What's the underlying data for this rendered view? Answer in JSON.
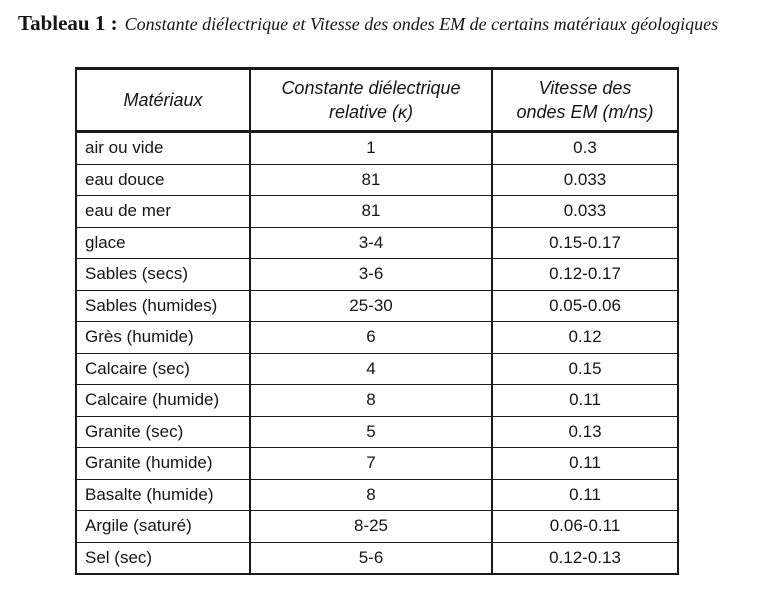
{
  "page": {
    "background_color": "#ffffff",
    "text_color": "#151515",
    "border_color": "#1a1a1a"
  },
  "title": {
    "label": "Tableau 1 :",
    "caption": "Constante diélectrique et Vitesse des ondes EM de certains matériaux géologiques"
  },
  "table": {
    "headers": [
      "Matériaux",
      "Constante diélectrique\nrelative (κ)",
      "Vitesse des\nondes EM (m/ns)"
    ],
    "rows": [
      {
        "material": "air ou vide",
        "kappa": "1",
        "velocity": "0.3"
      },
      {
        "material": "eau douce",
        "kappa": "81",
        "velocity": "0.033"
      },
      {
        "material": "eau de mer",
        "kappa": "81",
        "velocity": "0.033"
      },
      {
        "material": "glace",
        "kappa": "3-4",
        "velocity": "0.15-0.17"
      },
      {
        "material": "Sables (secs)",
        "kappa": "3-6",
        "velocity": "0.12-0.17"
      },
      {
        "material": "Sables (humides)",
        "kappa": "25-30",
        "velocity": "0.05-0.06"
      },
      {
        "material": "Grès (humide)",
        "kappa": "6",
        "velocity": "0.12"
      },
      {
        "material": "Calcaire (sec)",
        "kappa": "4",
        "velocity": "0.15"
      },
      {
        "material": "Calcaire (humide)",
        "kappa": "8",
        "velocity": "0.11"
      },
      {
        "material": "Granite (sec)",
        "kappa": "5",
        "velocity": "0.13"
      },
      {
        "material": "Granite (humide)",
        "kappa": "7",
        "velocity": "0.11"
      },
      {
        "material": "Basalte (humide)",
        "kappa": "8",
        "velocity": "0.11"
      },
      {
        "material": "Argile (saturé)",
        "kappa": "8-25",
        "velocity": "0.06-0.11"
      },
      {
        "material": "Sel (sec)",
        "kappa": "5-6",
        "velocity": "0.12-0.13"
      }
    ]
  }
}
